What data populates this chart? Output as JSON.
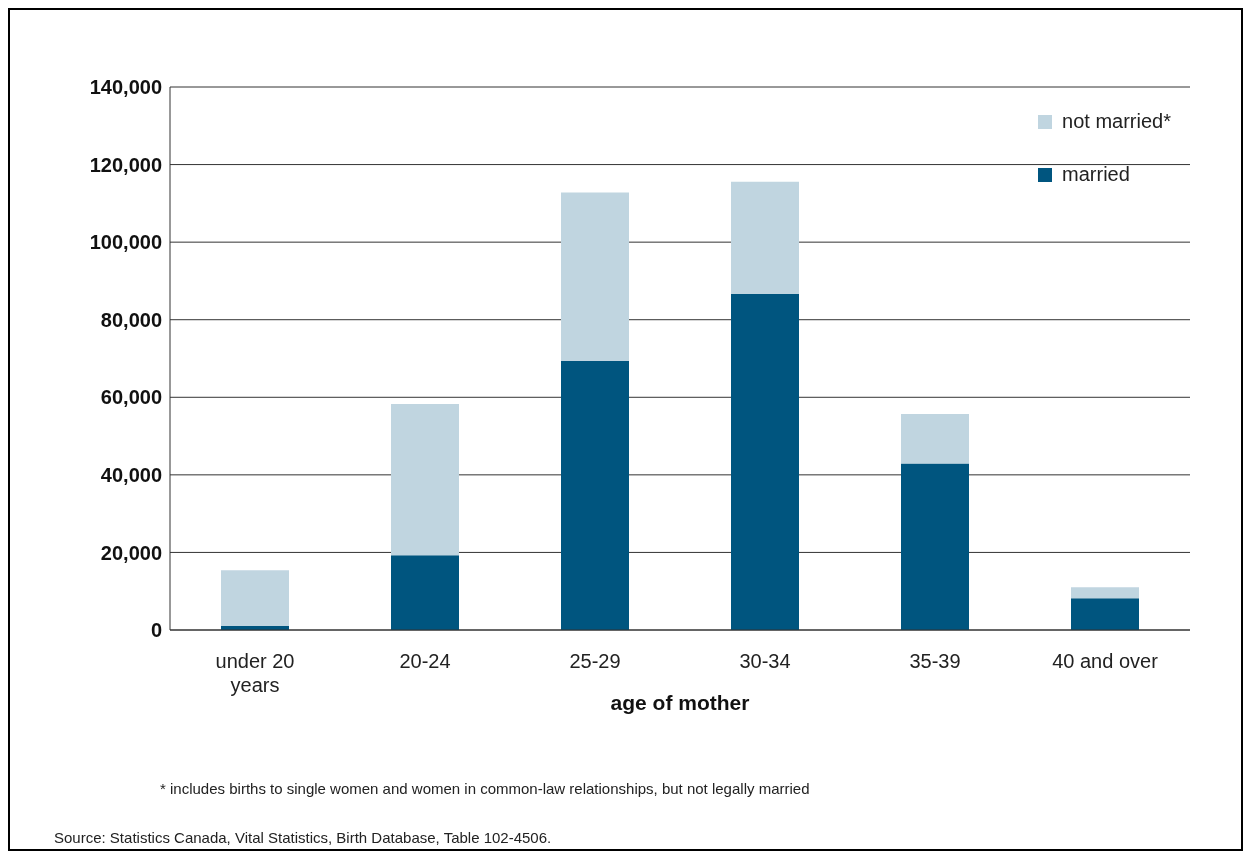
{
  "chart_data": {
    "type": "bar",
    "stacked": true,
    "xlabel": "age of mother",
    "categories": [
      "under 20 years",
      "20-24",
      "25-29",
      "30-34",
      "35-39",
      "40 and over"
    ],
    "series": [
      {
        "name": "married",
        "color": "#00557f",
        "values": [
          1000,
          19300,
          69400,
          86600,
          42900,
          8200
        ]
      },
      {
        "name": "not married*",
        "color": "#c0d5e0",
        "values": [
          14400,
          39000,
          43400,
          29000,
          12800,
          2800
        ]
      }
    ],
    "ylim": [
      0,
      140000
    ],
    "yticks": [
      {
        "value": 0,
        "label": "0"
      },
      {
        "value": 20000,
        "label": "20,000"
      },
      {
        "value": 40000,
        "label": "40,000"
      },
      {
        "value": 60000,
        "label": "60,000"
      },
      {
        "value": 80000,
        "label": "80,000"
      },
      {
        "value": 100000,
        "label": "100,000"
      },
      {
        "value": 120000,
        "label": "120,000"
      },
      {
        "value": 140000,
        "label": "140,000"
      }
    ],
    "grid": "y",
    "legend": "top right",
    "annotations": [
      "* includes births to single women and women in common-law relationships, but not legally married",
      "Source:  Statistics Canada, Vital Statistics, Birth Database, Table 102-4506."
    ]
  }
}
